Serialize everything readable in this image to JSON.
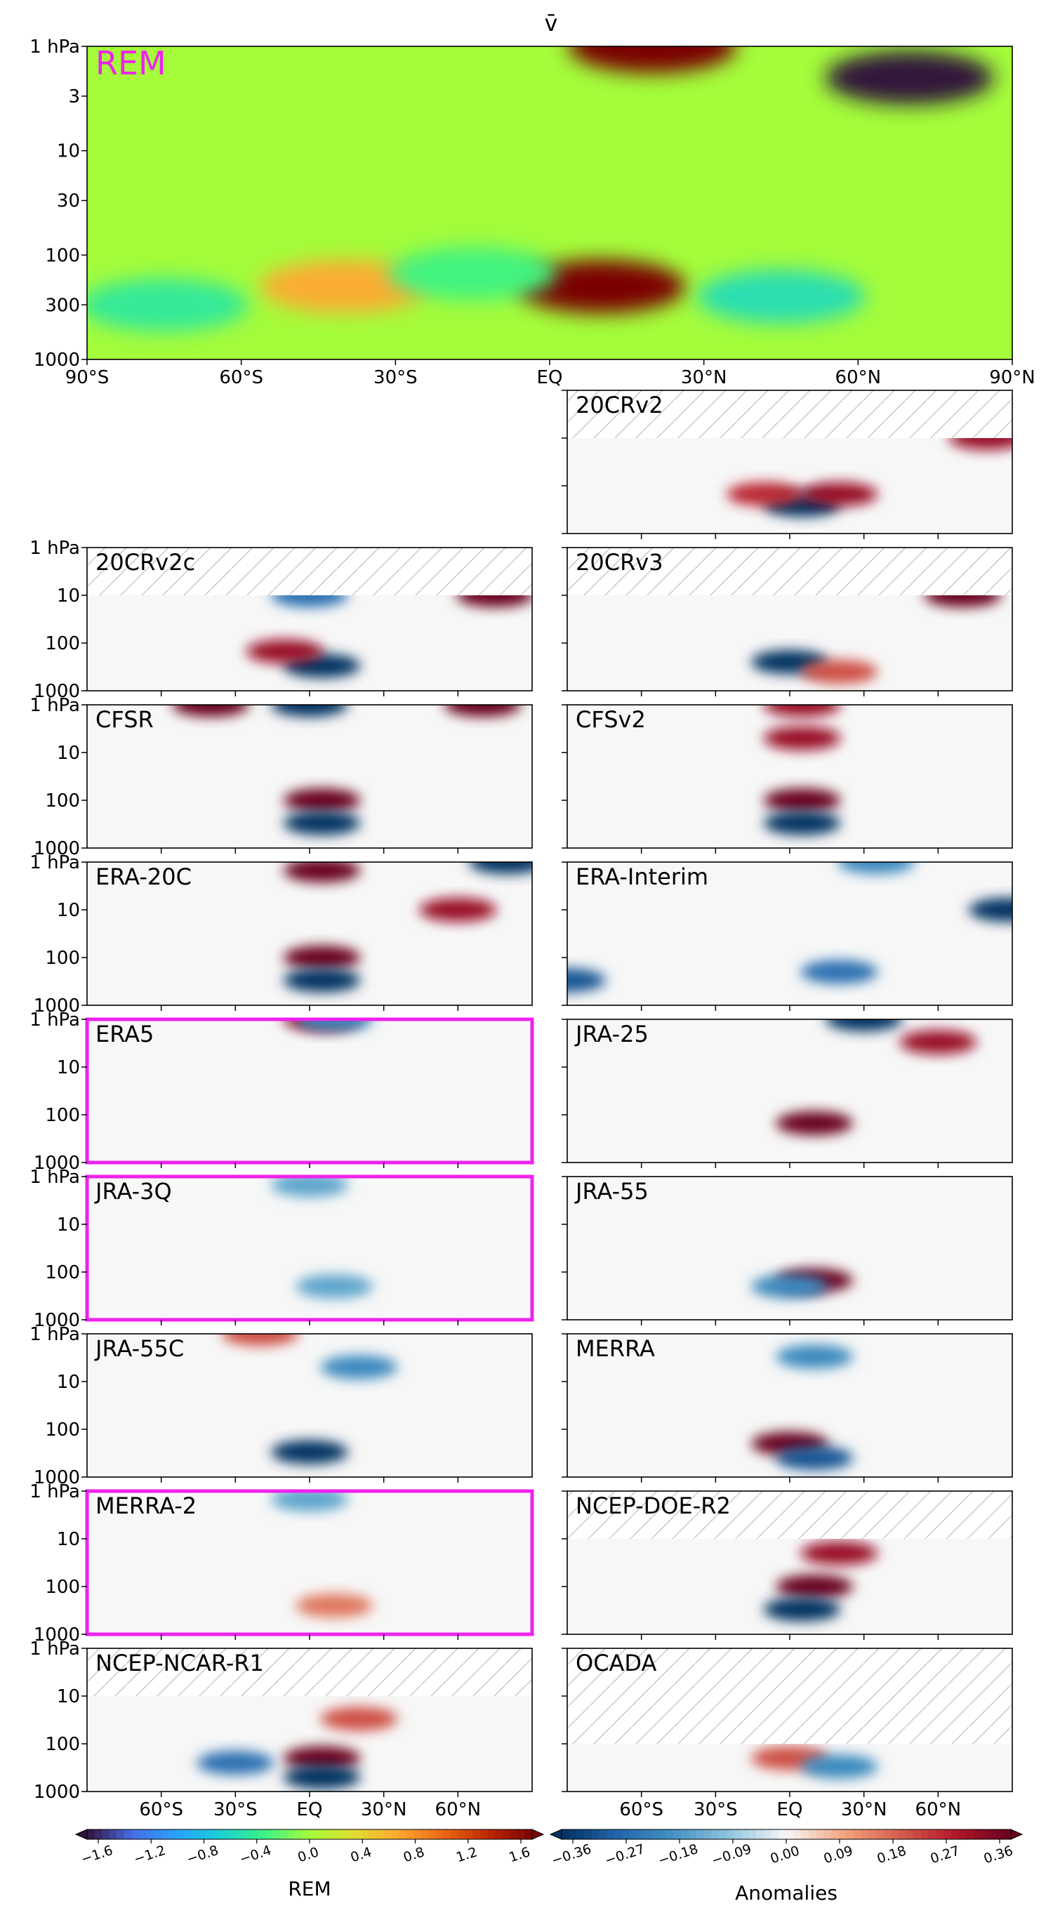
{
  "figure_title": "v̄",
  "chart_data": {
    "type": "heatmap",
    "variable": "v̄",
    "x_tick_labels_top": [
      "90°S",
      "60°S",
      "30°S",
      "EQ",
      "30°N",
      "60°N",
      "90°N"
    ],
    "x_tick_labels_bottom": [
      "60°S",
      "30°S",
      "EQ",
      "30°N",
      "60°N"
    ],
    "x_range": [
      -90,
      90
    ],
    "y_tick_labels_top": [
      "1 hPa",
      "3",
      "10",
      "30",
      "100",
      "300",
      "1000"
    ],
    "y_tick_labels_small": [
      "1 hPa",
      "10",
      "100",
      "1000"
    ],
    "y_range_hPa": [
      1000,
      1
    ],
    "y_scale": "log",
    "reference_panel": {
      "name": "REM",
      "colormap": "turbo",
      "features": [
        {
          "lat": 20,
          "p": 1,
          "value": 1.6
        },
        {
          "lat": 70,
          "p": 2,
          "value": -1.6
        },
        {
          "lat": 10,
          "p": 200,
          "value": 1.6
        },
        {
          "lat": -40,
          "p": 200,
          "value": 0.6
        },
        {
          "lat": 45,
          "p": 250,
          "value": -0.5
        },
        {
          "lat": -75,
          "p": 300,
          "value": -0.4
        },
        {
          "lat": -15,
          "p": 150,
          "value": -0.3
        }
      ]
    },
    "anomaly_panels": [
      {
        "name": "20CRv2",
        "highlight": false,
        "hatch_top_hPa": 10,
        "features": [
          {
            "lat": 5,
            "p": 250,
            "value": -0.36
          },
          {
            "lat": 20,
            "p": 150,
            "value": 0.3
          },
          {
            "lat": 80,
            "p": 10,
            "value": 0.3
          },
          {
            "lat": -10,
            "p": 150,
            "value": 0.25
          }
        ]
      },
      {
        "name": "20CRv2c",
        "highlight": false,
        "hatch_top_hPa": 10,
        "features": [
          {
            "lat": 5,
            "p": 300,
            "value": -0.36
          },
          {
            "lat": -10,
            "p": 150,
            "value": 0.3
          },
          {
            "lat": 75,
            "p": 10,
            "value": 0.36
          },
          {
            "lat": 0,
            "p": 10,
            "value": -0.25
          }
        ]
      },
      {
        "name": "20CRv3",
        "highlight": false,
        "hatch_top_hPa": 10,
        "features": [
          {
            "lat": 0,
            "p": 250,
            "value": -0.36
          },
          {
            "lat": 70,
            "p": 10,
            "value": 0.36
          },
          {
            "lat": 20,
            "p": 400,
            "value": 0.2
          }
        ]
      },
      {
        "name": "CFSR",
        "highlight": false,
        "hatch_top_hPa": null,
        "features": [
          {
            "lat": -40,
            "p": 1,
            "value": 0.36
          },
          {
            "lat": 0,
            "p": 1,
            "value": -0.36
          },
          {
            "lat": 70,
            "p": 1,
            "value": 0.36
          },
          {
            "lat": 5,
            "p": 100,
            "value": 0.36
          },
          {
            "lat": 5,
            "p": 300,
            "value": -0.36
          }
        ]
      },
      {
        "name": "CFSv2",
        "highlight": false,
        "hatch_top_hPa": null,
        "features": [
          {
            "lat": 5,
            "p": 1,
            "value": 0.3
          },
          {
            "lat": 5,
            "p": 100,
            "value": 0.36
          },
          {
            "lat": 5,
            "p": 300,
            "value": -0.36
          },
          {
            "lat": 5,
            "p": 5,
            "value": 0.3
          }
        ]
      },
      {
        "name": "ERA-20C",
        "highlight": false,
        "hatch_top_hPa": null,
        "features": [
          {
            "lat": 5,
            "p": 1.5,
            "value": 0.36
          },
          {
            "lat": 80,
            "p": 1,
            "value": -0.36
          },
          {
            "lat": 60,
            "p": 10,
            "value": 0.3
          },
          {
            "lat": 5,
            "p": 100,
            "value": 0.36
          },
          {
            "lat": 5,
            "p": 300,
            "value": -0.36
          }
        ]
      },
      {
        "name": "ERA-Interim",
        "highlight": false,
        "hatch_top_hPa": null,
        "features": [
          {
            "lat": 88,
            "p": 10,
            "value": -0.36
          },
          {
            "lat": -90,
            "p": 300,
            "value": -0.3
          },
          {
            "lat": 20,
            "p": 200,
            "value": -0.25
          },
          {
            "lat": 35,
            "p": 1,
            "value": -0.2
          }
        ]
      },
      {
        "name": "ERA5",
        "highlight": true,
        "hatch_top_hPa": null,
        "features": [
          {
            "lat": 5,
            "p": 1,
            "value": 0.3
          },
          {
            "lat": 10,
            "p": 1,
            "value": -0.2
          }
        ]
      },
      {
        "name": "JRA-25",
        "highlight": false,
        "hatch_top_hPa": null,
        "features": [
          {
            "lat": 30,
            "p": 1,
            "value": -0.36
          },
          {
            "lat": 60,
            "p": 3,
            "value": 0.3
          },
          {
            "lat": 10,
            "p": 150,
            "value": 0.36
          }
        ]
      },
      {
        "name": "JRA-3Q",
        "highlight": true,
        "hatch_top_hPa": null,
        "features": [
          {
            "lat": 0,
            "p": 1.5,
            "value": -0.15
          },
          {
            "lat": 10,
            "p": 200,
            "value": -0.15
          }
        ]
      },
      {
        "name": "JRA-55",
        "highlight": false,
        "hatch_top_hPa": null,
        "features": [
          {
            "lat": 10,
            "p": 150,
            "value": 0.36
          },
          {
            "lat": 0,
            "p": 200,
            "value": -0.2
          }
        ]
      },
      {
        "name": "JRA-55C",
        "highlight": false,
        "hatch_top_hPa": null,
        "features": [
          {
            "lat": 0,
            "p": 300,
            "value": -0.36
          },
          {
            "lat": 20,
            "p": 5,
            "value": -0.2
          },
          {
            "lat": -20,
            "p": 1,
            "value": 0.2
          }
        ]
      },
      {
        "name": "MERRA",
        "highlight": false,
        "hatch_top_hPa": null,
        "features": [
          {
            "lat": 0,
            "p": 200,
            "value": 0.36
          },
          {
            "lat": 10,
            "p": 400,
            "value": -0.3
          },
          {
            "lat": 10,
            "p": 3,
            "value": -0.2
          }
        ]
      },
      {
        "name": "MERRA-2",
        "highlight": true,
        "hatch_top_hPa": null,
        "features": [
          {
            "lat": 0,
            "p": 1.5,
            "value": -0.15
          },
          {
            "lat": 10,
            "p": 250,
            "value": 0.15
          }
        ]
      },
      {
        "name": "NCEP-DOE-R2",
        "highlight": false,
        "hatch_top_hPa": 10,
        "features": [
          {
            "lat": 10,
            "p": 100,
            "value": 0.36
          },
          {
            "lat": 5,
            "p": 300,
            "value": -0.36
          },
          {
            "lat": 20,
            "p": 20,
            "value": 0.3
          }
        ]
      },
      {
        "name": "NCEP-NCAR-R1",
        "highlight": false,
        "hatch_top_hPa": 10,
        "features": [
          {
            "lat": 5,
            "p": 200,
            "value": 0.36
          },
          {
            "lat": 5,
            "p": 500,
            "value": -0.36
          },
          {
            "lat": -30,
            "p": 250,
            "value": -0.25
          },
          {
            "lat": 20,
            "p": 30,
            "value": 0.2
          }
        ]
      },
      {
        "name": "OCADA",
        "highlight": false,
        "hatch_top_hPa": 100,
        "features": [
          {
            "lat": 0,
            "p": 200,
            "value": 0.2
          },
          {
            "lat": 20,
            "p": 300,
            "value": -0.2
          }
        ]
      }
    ],
    "colorbars": [
      {
        "label": "REM",
        "colormap": "turbo",
        "ticks": [
          "−1.6",
          "−1.2",
          "−0.8",
          "−0.4",
          "0.0",
          "0.4",
          "0.8",
          "1.2",
          "1.6"
        ],
        "range": [
          -1.6,
          1.6
        ]
      },
      {
        "label": "Anomalies",
        "colormap": "RdBu_r",
        "ticks": [
          "−0.36",
          "−0.27",
          "−0.18",
          "−0.09",
          "0.00",
          "0.09",
          "0.18",
          "0.27",
          "0.36"
        ],
        "range": [
          -0.36,
          0.36
        ]
      }
    ],
    "highlight_color": "#ee22ee"
  }
}
